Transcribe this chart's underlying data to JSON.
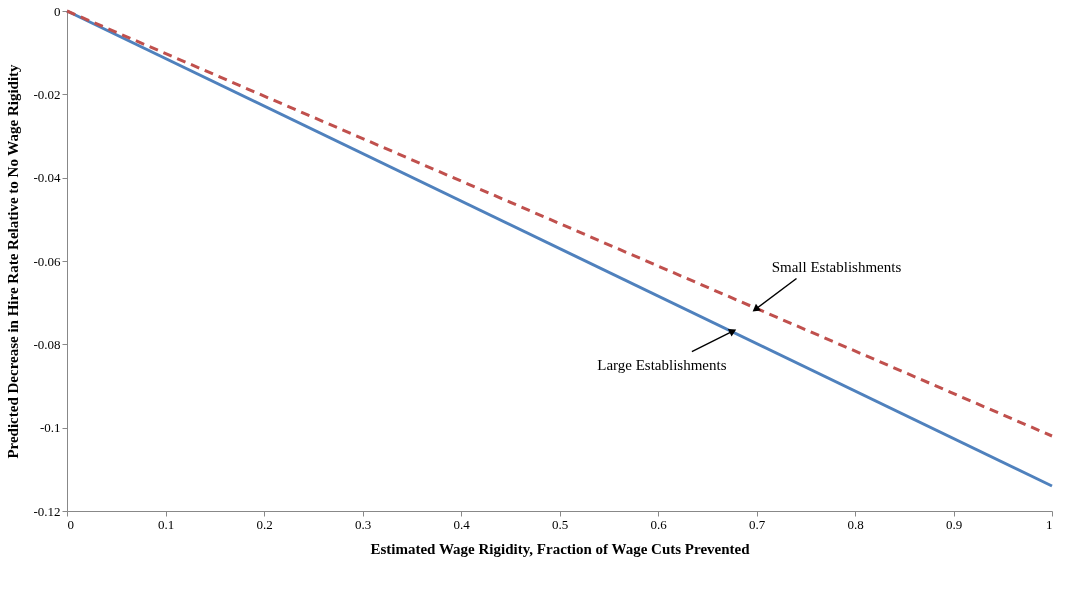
{
  "chart_data": {
    "type": "line",
    "xlabel": "Estimated Wage Rigidity, Fraction of Wage Cuts Prevented",
    "ylabel": "Predicted Decrease in Hire Rate Relative to No Wage Rigidity",
    "x": [
      0,
      1
    ],
    "series": [
      {
        "name": "Large Establishments",
        "color": "#4f81bd",
        "values": [
          0,
          -0.114
        ],
        "line_style": "solid"
      },
      {
        "name": "Small Establishments",
        "color": "#c0504d",
        "values": [
          0,
          -0.102
        ],
        "line_style": "dashed"
      }
    ],
    "xlim": [
      0,
      1
    ],
    "ylim": [
      -0.12,
      0
    ],
    "xticks": [
      0,
      0.1,
      0.2,
      0.3,
      0.4,
      0.5,
      0.6,
      0.7,
      0.8,
      0.9,
      1
    ],
    "yticks": [
      -0.12,
      -0.1,
      -0.08,
      -0.06,
      -0.04,
      -0.02,
      0
    ],
    "grid": false,
    "legend": false,
    "marker": "none"
  }
}
